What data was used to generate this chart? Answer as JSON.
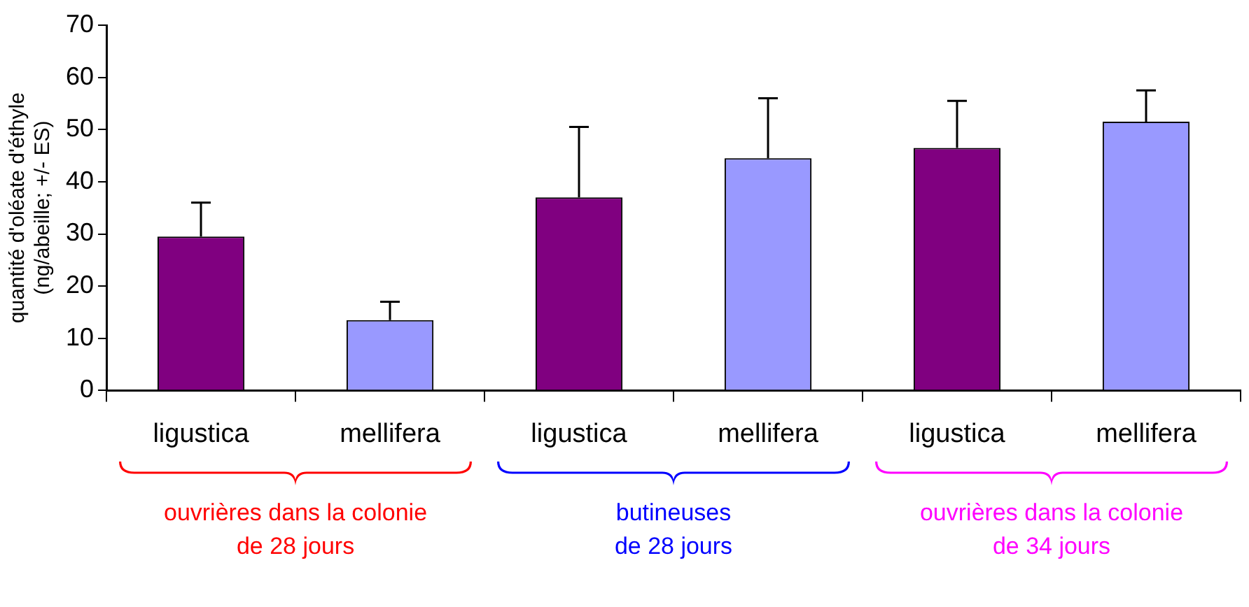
{
  "chart_data": {
    "type": "bar",
    "ylabel": "quantité d'oléate d'éthyle\n(ng/abeille; +/- ES)",
    "categories": [
      "ligustica",
      "mellifera",
      "ligustica",
      "mellifera",
      "ligustica",
      "mellifera"
    ],
    "values": [
      29.5,
      13.5,
      37,
      44.5,
      46.5,
      51.5
    ],
    "colors": [
      "#800080",
      "#9999ff",
      "#800080",
      "#9999ff",
      "#800080",
      "#9999ff"
    ],
    "errors": [
      [
        29.5,
        36
      ],
      [
        13.5,
        17
      ],
      [
        37,
        50.5
      ],
      [
        44.5,
        56
      ],
      [
        46.5,
        55.5
      ],
      [
        51.5,
        57.5
      ]
    ],
    "ylim": [
      0,
      70
    ],
    "yticks": [
      0,
      10,
      20,
      30,
      40,
      50,
      60,
      70
    ],
    "grid": false,
    "legend": false,
    "annotations": [
      "ouvrières dans la colonie\nde 28 jours",
      "butineuses\nde 28 jours",
      "ouvrières dans la colonie\nde 34 jours"
    ]
  }
}
